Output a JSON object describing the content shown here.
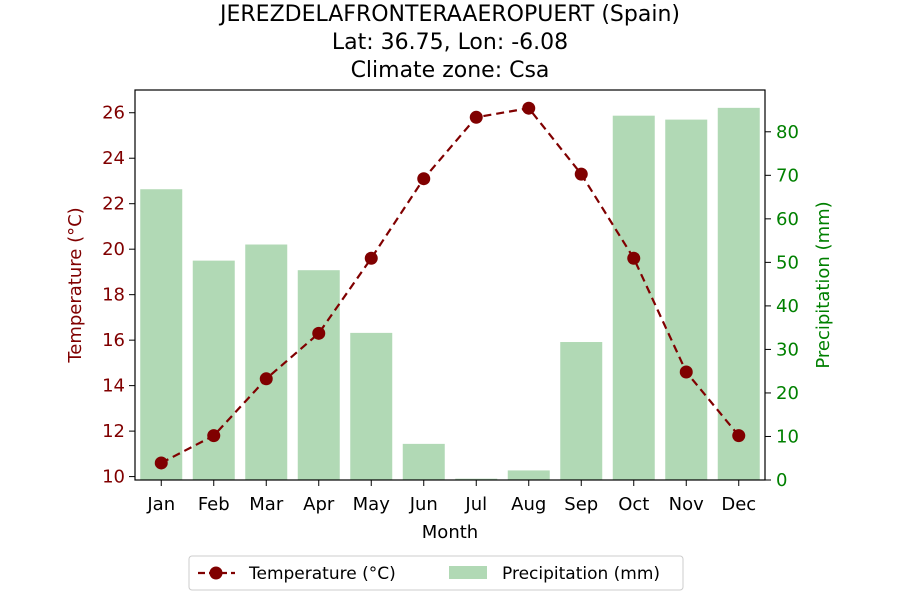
{
  "colors": {
    "temperature": "#800000",
    "precipitation_bar": "#b1d9b5",
    "precipitation_axis": "#008000",
    "axis": "#000000"
  },
  "chart_data": {
    "type": "bar+line",
    "title_lines": [
      "JEREZDELAFRONTERAAEROPUERT (Spain)",
      "Lat: 36.75, Lon: -6.08",
      "Climate zone: Csa"
    ],
    "xlabel": "Month",
    "categories": [
      "Jan",
      "Feb",
      "Mar",
      "Apr",
      "May",
      "Jun",
      "Jul",
      "Aug",
      "Sep",
      "Oct",
      "Nov",
      "Dec"
    ],
    "temperature": {
      "name": "Temperature (°C)",
      "axis_label": "Temperature (°C)",
      "ylim": [
        9.85,
        27.0
      ],
      "ticks": [
        10,
        12,
        14,
        16,
        18,
        20,
        22,
        24,
        26
      ],
      "values": [
        10.6,
        11.8,
        14.3,
        16.3,
        19.6,
        23.1,
        25.8,
        26.2,
        23.3,
        19.6,
        14.6,
        11.8
      ],
      "style": "dashed line with circle markers"
    },
    "precipitation": {
      "name": "Precipitation (mm)",
      "axis_label": "Precipitation (mm)",
      "ylim": [
        0,
        89.6
      ],
      "ticks": [
        0,
        10,
        20,
        30,
        40,
        50,
        60,
        70,
        80
      ],
      "values": [
        66.8,
        50.4,
        54.1,
        48.2,
        33.8,
        8.3,
        0.3,
        2.2,
        31.7,
        83.7,
        82.8,
        85.5
      ]
    },
    "legend": {
      "placement": "bottom-center",
      "entries": [
        "Temperature (°C)",
        "Precipitation (mm)"
      ]
    }
  }
}
